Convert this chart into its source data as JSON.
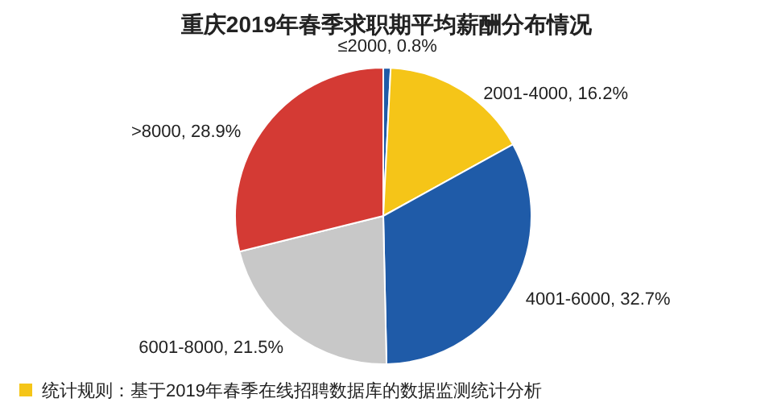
{
  "chart_data": {
    "type": "pie",
    "title": "重庆2019年春季求职期平均薪酬分布情况",
    "categories": [
      "≤2000",
      "2001-4000",
      "4001-6000",
      "6001-8000",
      ">8000"
    ],
    "values": [
      0.8,
      16.2,
      32.7,
      21.5,
      28.9
    ],
    "colors": [
      "#1f5ba8",
      "#f5c518",
      "#1f5ba8",
      "#c8c8c8",
      "#d43a34"
    ],
    "value_labels": [
      ", 0.8%",
      ", 16.2%",
      ", 32.7%",
      ", 21.5%",
      ", 28.9%"
    ],
    "annotations": [
      "统计规则：基于2019年春季在线招聘数据库的数据监测统计分析"
    ]
  }
}
